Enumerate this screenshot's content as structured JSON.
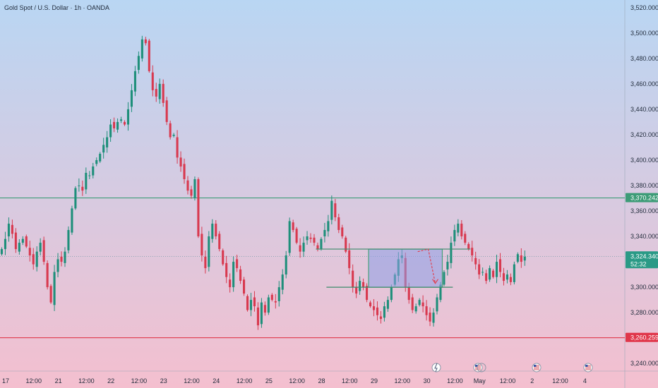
{
  "header": {
    "title": "Gold Spot / U.S. Dollar · 1h · OANDA"
  },
  "colors": {
    "up": "#1e8f7a",
    "down": "#d8394f",
    "resistance": "#3d9c77",
    "support": "#e0364a",
    "range_line": "#3b8b6a",
    "range_box_fill": "#8e9ee6",
    "range_box_stroke": "#46a07c",
    "arrow": "#e04050",
    "last_price_tag": "#2a9a86",
    "bg_top": "#b9d6f3",
    "bg_bottom": "#f4bfcf"
  },
  "chart_data": {
    "type": "candlestick",
    "title": "Gold Spot / U.S. Dollar · 1h · OANDA",
    "ylim": [
      3234,
      3526
    ],
    "xlim": [
      0,
      178
    ],
    "y_ticks": [
      "3,520.000",
      "3,500.000",
      "3,480.000",
      "3,460.000",
      "3,440.000",
      "3,420.000",
      "3,400.000",
      "3,380.000",
      "3,360.000",
      "3,340.000",
      "3,300.000",
      "3,280.000",
      "3,240.000"
    ],
    "y_tick_values": [
      3520,
      3500,
      3480,
      3460,
      3440,
      3420,
      3400,
      3380,
      3360,
      3340,
      3300,
      3280,
      3240
    ],
    "x_ticks": [
      {
        "label": "17",
        "x": 0
      },
      {
        "label": "12:00",
        "x": 8
      },
      {
        "label": "21",
        "x": 15
      },
      {
        "label": "12:00",
        "x": 23
      },
      {
        "label": "22",
        "x": 30
      },
      {
        "label": "12:00",
        "x": 38
      },
      {
        "label": "23",
        "x": 45
      },
      {
        "label": "12:00",
        "x": 53
      },
      {
        "label": "24",
        "x": 60
      },
      {
        "label": "12:00",
        "x": 68
      },
      {
        "label": "25",
        "x": 75
      },
      {
        "label": "12:00",
        "x": 83
      },
      {
        "label": "28",
        "x": 90
      },
      {
        "label": "12:00",
        "x": 98
      },
      {
        "label": "29",
        "x": 105
      },
      {
        "label": "12:00",
        "x": 113
      },
      {
        "label": "30",
        "x": 120
      },
      {
        "label": "12:00",
        "x": 128
      },
      {
        "label": "May",
        "x": 135
      },
      {
        "label": "12:00",
        "x": 143
      },
      {
        "label": "2",
        "x": 150
      },
      {
        "label": "12:00",
        "x": 158
      },
      {
        "label": "4",
        "x": 165
      }
    ],
    "key_levels": [
      {
        "name": "resistance",
        "value": 3370.242,
        "label": "3,370.242"
      },
      {
        "name": "support",
        "value": 3260.259,
        "label": "3,260.259"
      }
    ],
    "last_price": {
      "value": 3324.34,
      "label": "3,324.340",
      "countdown": "52:32"
    },
    "range_lines": [
      {
        "value": 3330,
        "x_start": 90,
        "x_end": 134
      },
      {
        "value": 3300,
        "x_start": 93,
        "x_end": 129
      }
    ],
    "range_box": {
      "x_start": 105,
      "x_end": 126,
      "y_low": 3300,
      "y_high": 3330
    },
    "projection_arrow": [
      [
        119,
        3328
      ],
      [
        122,
        3330
      ],
      [
        124,
        3303
      ]
    ],
    "closes": [
      3330,
      3338,
      3350,
      3342,
      3330,
      3335,
      3338,
      3332,
      3325,
      3318,
      3328,
      3335,
      3320,
      3300,
      3288,
      3312,
      3322,
      3320,
      3328,
      3345,
      3362,
      3378,
      3380,
      3376,
      3390,
      3388,
      3395,
      3400,
      3405,
      3412,
      3418,
      3428,
      3425,
      3430,
      3432,
      3428,
      3440,
      3455,
      3470,
      3482,
      3495,
      3492,
      3470,
      3455,
      3450,
      3460,
      3445,
      3430,
      3418,
      3420,
      3402,
      3395,
      3385,
      3376,
      3372,
      3385,
      3340,
      3325,
      3315,
      3340,
      3350,
      3340,
      3330,
      3318,
      3308,
      3300,
      3320,
      3315,
      3305,
      3295,
      3282,
      3290,
      3285,
      3270,
      3288,
      3280,
      3292,
      3290,
      3288,
      3300,
      3310,
      3325,
      3352,
      3345,
      3335,
      3328,
      3335,
      3340,
      3338,
      3335,
      3330,
      3338,
      3345,
      3352,
      3368,
      3355,
      3345,
      3340,
      3328,
      3315,
      3300,
      3295,
      3305,
      3300,
      3290,
      3285,
      3282,
      3278,
      3275,
      3285,
      3290,
      3300,
      3310,
      3322,
      3325,
      3300,
      3290,
      3282,
      3285,
      3290,
      3285,
      3278,
      3273,
      3280,
      3292,
      3302,
      3312,
      3320,
      3335,
      3345,
      3350,
      3340,
      3335,
      3330,
      3325,
      3318,
      3310,
      3312,
      3305,
      3315,
      3308,
      3320,
      3312,
      3305,
      3310,
      3304,
      3318,
      3326,
      3320,
      3324
    ]
  },
  "events": [
    "lightning-event-icon",
    "us-flag-event-icon",
    "us-flag-event-icon",
    "us-flag-event-icon"
  ]
}
